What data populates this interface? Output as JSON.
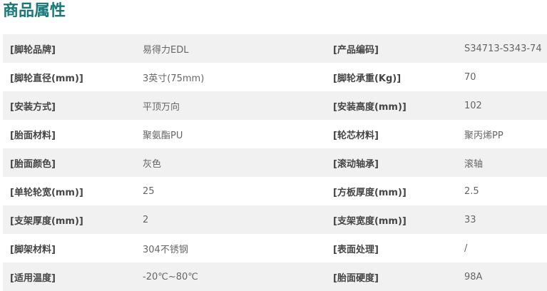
{
  "title": "商品属性",
  "accent_color": "#17797a",
  "rows": [
    {
      "k1": "[脚轮品牌]",
      "v1": "易得力EDL",
      "k2": "[产品编码]",
      "v2": "S34713-S343-74"
    },
    {
      "k1": "[脚轮直径(mm)]",
      "v1": "3英寸(75mm)",
      "k2": "[脚轮承重(Kg)]",
      "v2": "70"
    },
    {
      "k1": "[安装方式]",
      "v1": "平顶万向",
      "k2": "[安装高度(mm)]",
      "v2": "102"
    },
    {
      "k1": "[胎面材料]",
      "v1": "聚氨酯PU",
      "k2": "[轮芯材料]",
      "v2": "聚丙烯PP"
    },
    {
      "k1": "[胎面颜色]",
      "v1": "灰色",
      "k2": "[滚动轴承]",
      "v2": "滚轴"
    },
    {
      "k1": "[单轮轮宽(mm)]",
      "v1": "25",
      "k2": "[方板厚度(mm)]",
      "v2": "2.5"
    },
    {
      "k1": "[支架厚度(mm)]",
      "v1": "2",
      "k2": "[支架宽度(mm)]",
      "v2": "33"
    },
    {
      "k1": "[脚架材料]",
      "v1": "304不锈钢",
      "k2": "[表面处理]",
      "v2": "/"
    },
    {
      "k1": "[适用温度]",
      "v1": "-20℃~80℃",
      "k2": "[胎面硬度]",
      "v2": "98A"
    }
  ]
}
